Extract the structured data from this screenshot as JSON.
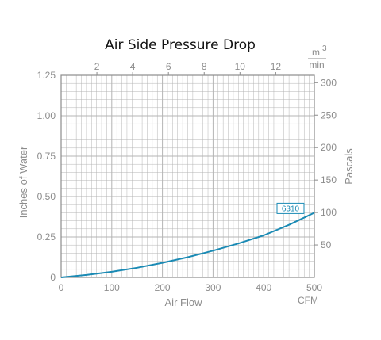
{
  "chart_data": {
    "type": "line",
    "title": "Air Side Pressure Drop",
    "xlabel": "Air Flow",
    "xunit": "CFM",
    "ylabel": "Inches of Water",
    "ylabel_right": "Pascals",
    "xlabel_top_unit_num": "m",
    "xlabel_top_unit_exp": "3",
    "xlabel_top_unit_den": "min",
    "xlim": [
      0,
      500
    ],
    "ylim": [
      0,
      1.25
    ],
    "x_ticks": [
      "0",
      "100",
      "200",
      "300",
      "400",
      "500"
    ],
    "y_ticks": [
      "0",
      "0.25",
      "0.50",
      "0.75",
      "1.00",
      "1.25"
    ],
    "top_ticks": [
      "2",
      "4",
      "6",
      "8",
      "10",
      "12"
    ],
    "top_tick_values_m3min": [
      2,
      4,
      6,
      8,
      10,
      12
    ],
    "right_ticks": [
      "50",
      "100",
      "150",
      "200",
      "250",
      "300"
    ],
    "right_tick_values_pa": [
      50,
      100,
      150,
      200,
      250,
      300
    ],
    "grid": true,
    "colors": {
      "series": "#1a8ab4",
      "grid": "#b4b4b4",
      "axis": "#8c8c8c"
    },
    "series": [
      {
        "name": "6310",
        "x": [
          0,
          50,
          100,
          150,
          200,
          250,
          300,
          350,
          400,
          450,
          500
        ],
        "y": [
          0,
          0.015,
          0.035,
          0.06,
          0.09,
          0.125,
          0.165,
          0.21,
          0.26,
          0.325,
          0.4
        ]
      }
    ]
  }
}
